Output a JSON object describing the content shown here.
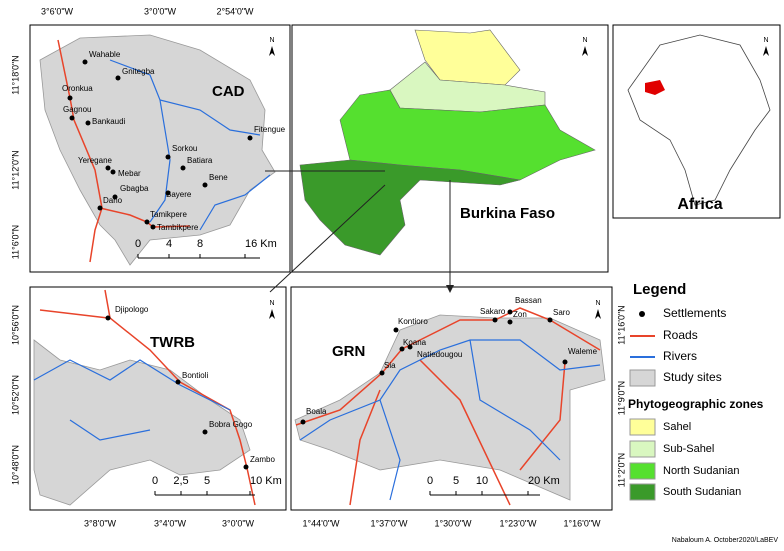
{
  "cad": {
    "title": "CAD",
    "north": "N",
    "top_coords": [
      "3°6'0\"W",
      "3°0'0\"W",
      "2°54'0\"W"
    ],
    "left_coords": [
      "11°18'0\"N",
      "11°12'0\"N",
      "11°6'0\"N"
    ],
    "places": [
      "Wahable",
      "Gnitegba",
      "Oronkua",
      "Gagnou",
      "Bankaudi",
      "Fitengue",
      "Sorkou",
      "Batiara",
      "Yeregane",
      "Mebar",
      "Bene",
      "Gbagba",
      "Bayere",
      "Dano",
      "Tamikpere",
      "Tambikpere"
    ],
    "scale": [
      "0",
      "4",
      "8",
      "16 Km"
    ]
  },
  "burkina": {
    "title": "Burkina Faso",
    "north": "N"
  },
  "africa": {
    "title": "Africa",
    "north": "N"
  },
  "twrb": {
    "title": "TWRB",
    "north": "N",
    "left_coords": [
      "10°56'0\"N",
      "10°52'0\"N",
      "10°48'0\"N"
    ],
    "bottom_coords": [
      "3°8'0\"W",
      "3°4'0\"W",
      "3°0'0\"W"
    ],
    "places": [
      "Djipologo",
      "Bontioli",
      "Bobra Gogo",
      "Zambo"
    ],
    "scale": [
      "0",
      "2,5",
      "5",
      "10 Km"
    ]
  },
  "grn": {
    "title": "GRN",
    "north": "N",
    "right_coords": [
      "11°16'0\"N",
      "11°9'0\"N",
      "11°2'0\"N"
    ],
    "bottom_coords": [
      "1°44'0\"W",
      "1°37'0\"W",
      "1°30'0\"W",
      "1°23'0\"W",
      "1°16'0\"W"
    ],
    "places": [
      "Kontioro",
      "Koana",
      "Natiedougou",
      "Sia",
      "Boala",
      "Sakaro",
      "Bassan",
      "Zon",
      "Saro",
      "Waleme"
    ],
    "scale": [
      "0",
      "5",
      "10",
      "20 Km"
    ]
  },
  "legend": {
    "title": "Legend",
    "items": [
      "Settlements",
      "Roads",
      "Rivers",
      "Study sites"
    ],
    "zones_title": "Phytogeographic zones",
    "zones": [
      "Sahel",
      "Sub-Sahel",
      "North Sudanian",
      "South Sudanian"
    ]
  },
  "credit": "Nabaloum A. October2020/LaBEV"
}
